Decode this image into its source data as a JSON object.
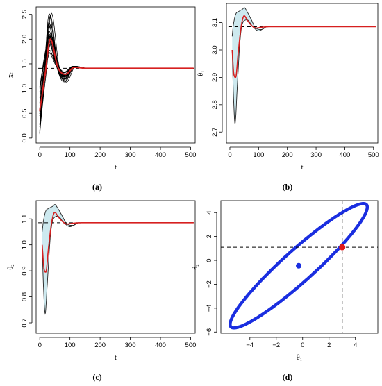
{
  "figure": {
    "captions": [
      "(a)",
      "(b)",
      "(c)",
      "(d)"
    ]
  },
  "chart_data": [
    {
      "type": "line",
      "panel": "(a)",
      "xlabel": "t",
      "ylabel": "xₜ",
      "xlim": [
        -12,
        515
      ],
      "ylim": [
        -0.1,
        2.65
      ],
      "xticks": [
        0,
        100,
        200,
        300,
        400,
        500
      ],
      "yticks": [
        0.0,
        0.5,
        1.0,
        1.5,
        2.0,
        2.5
      ],
      "xtick_labels": [
        "0",
        "100",
        "200",
        "300",
        "400",
        "500"
      ],
      "ytick_labels": [
        "0.0",
        "0.5",
        "1.0",
        "1.5",
        "2.0",
        "2.5"
      ],
      "reference_level": 1.41,
      "reference_style": "dashed",
      "trajectories": {
        "count": 24,
        "color": "#000000",
        "start_range": [
          0.03,
          1.05
        ],
        "peak_time": 35,
        "peak_range": [
          1.65,
          2.58
        ],
        "settle_value": 1.41
      },
      "highlight": {
        "color": "#d62020",
        "start": 0.55,
        "peak_time": 35,
        "peak": 2.0,
        "settle_value": 1.41
      },
      "grid": false
    },
    {
      "type": "area",
      "panel": "(b)",
      "xlabel": "t",
      "ylabel": "θ₁",
      "xlim": [
        -12,
        515
      ],
      "ylim": [
        2.66,
        3.17
      ],
      "xticks": [
        0,
        100,
        200,
        300,
        400,
        500
      ],
      "yticks": [
        2.7,
        2.8,
        2.9,
        3.0,
        3.1
      ],
      "xtick_labels": [
        "0",
        "100",
        "200",
        "300",
        "400",
        "500"
      ],
      "ytick_labels": [
        "2.7",
        "2.8",
        "2.9",
        "3.0",
        "3.1"
      ],
      "reference_level": 3.085,
      "reference_style": "dashed",
      "band": {
        "fill": "#cde9ef",
        "upper": {
          "x": [
            8,
            12,
            20,
            30,
            45,
            50,
            60,
            75,
            90,
            110,
            130,
            160,
            510
          ],
          "y": [
            3.05,
            3.09,
            3.13,
            3.14,
            3.15,
            3.155,
            3.14,
            3.11,
            3.08,
            3.075,
            3.085,
            3.085,
            3.085
          ]
        },
        "lower": {
          "x": [
            8,
            12,
            18,
            25,
            35,
            45,
            60,
            80,
            100,
            130,
            160,
            510
          ],
          "y": [
            3.0,
            2.85,
            2.73,
            2.85,
            3.03,
            3.1,
            3.11,
            3.085,
            3.07,
            3.085,
            3.085,
            3.085
          ]
        }
      },
      "mean": {
        "color": "#d62020",
        "x": [
          8,
          14,
          20,
          30,
          40,
          50,
          60,
          75,
          90,
          110,
          140,
          510
        ],
        "y": [
          3.0,
          2.91,
          2.9,
          3.0,
          3.09,
          3.125,
          3.11,
          3.09,
          3.08,
          3.083,
          3.085,
          3.085
        ]
      },
      "grid": false
    },
    {
      "type": "area",
      "panel": "(c)",
      "xlabel": "t",
      "ylabel": "θ₂",
      "xlim": [
        -12,
        515
      ],
      "ylim": [
        0.66,
        1.17
      ],
      "xticks": [
        0,
        100,
        200,
        300,
        400,
        500
      ],
      "yticks": [
        0.7,
        0.8,
        0.9,
        1.0,
        1.1
      ],
      "xtick_labels": [
        "0",
        "100",
        "200",
        "300",
        "400",
        "500"
      ],
      "ytick_labels": [
        "0.7",
        "0.8",
        "0.9",
        "1.0",
        "1.1"
      ],
      "reference_level": 1.085,
      "reference_style": "dashed",
      "band": {
        "fill": "#cde9ef",
        "upper": {
          "x": [
            8,
            12,
            20,
            30,
            45,
            50,
            60,
            75,
            90,
            110,
            130,
            160,
            510
          ],
          "y": [
            1.05,
            1.09,
            1.13,
            1.14,
            1.15,
            1.155,
            1.14,
            1.11,
            1.08,
            1.075,
            1.085,
            1.085,
            1.085
          ]
        },
        "lower": {
          "x": [
            8,
            12,
            18,
            25,
            35,
            45,
            60,
            80,
            100,
            130,
            160,
            510
          ],
          "y": [
            1.0,
            0.85,
            0.735,
            0.85,
            1.03,
            1.1,
            1.11,
            1.085,
            1.07,
            1.085,
            1.085,
            1.085
          ]
        }
      },
      "mean": {
        "color": "#d62020",
        "x": [
          8,
          14,
          20,
          30,
          40,
          50,
          60,
          75,
          90,
          110,
          140,
          510
        ],
        "y": [
          1.0,
          0.91,
          0.895,
          1.0,
          1.09,
          1.125,
          1.11,
          1.09,
          1.08,
          1.083,
          1.085,
          1.085
        ]
      },
      "grid": false
    },
    {
      "type": "scatter",
      "panel": "(d)",
      "xlabel": "θ₁",
      "ylabel": "θ₂",
      "xlim": [
        -6.2,
        5.7
      ],
      "ylim": [
        -6.1,
        5.0
      ],
      "xticks": [
        -4,
        -2,
        0,
        2,
        4
      ],
      "yticks": [
        -6,
        -4,
        -2,
        0,
        2,
        4
      ],
      "xtick_labels": [
        "−4",
        "−2",
        "0",
        "2",
        "4"
      ],
      "ytick_labels": [
        "−6",
        "−4",
        "−2",
        "0",
        "2",
        "4"
      ],
      "ellipse": {
        "color": "#1a2ee0",
        "center": [
          -0.3,
          -0.45
        ],
        "semi_major": 7.25,
        "semi_minor": 1.25,
        "angle_deg": 45
      },
      "center_point": {
        "color": "#1a2ee0",
        "x": -0.3,
        "y": -0.45
      },
      "true_point": {
        "color": "#e01818",
        "x": 3.0,
        "y": 1.1
      },
      "crosshair": {
        "x": 3.0,
        "y": 1.1,
        "style": "dashed"
      },
      "grid": false
    }
  ]
}
